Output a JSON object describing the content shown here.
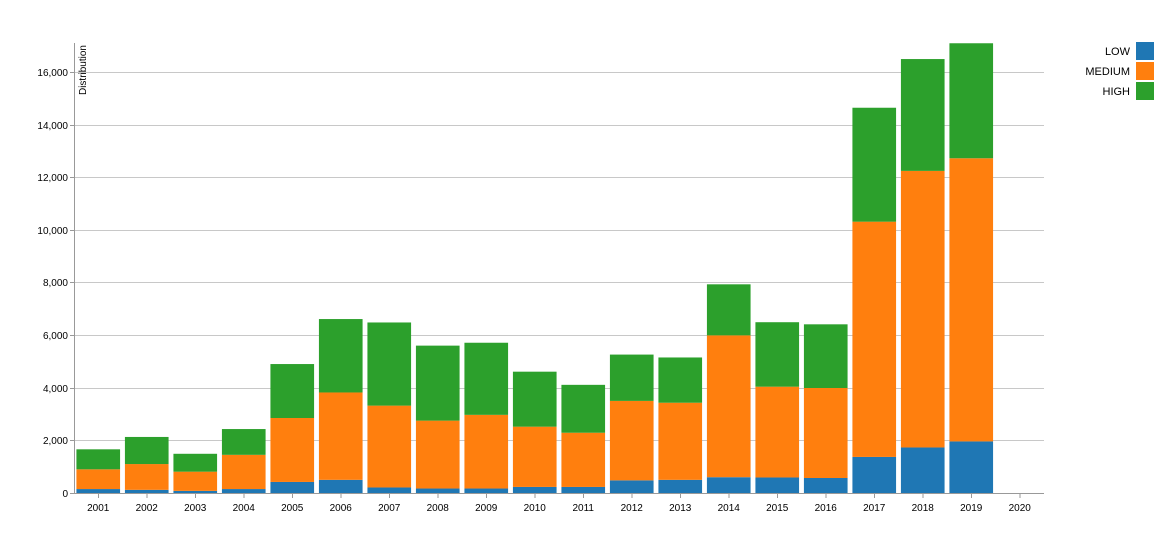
{
  "chart_data": {
    "type": "bar",
    "stacked": true,
    "title": "",
    "xlabel": "",
    "ylabel": "Distribution",
    "ylim": [
      0,
      17100
    ],
    "yticks": [
      0,
      2000,
      4000,
      6000,
      8000,
      10000,
      12000,
      14000,
      16000
    ],
    "ytick_labels": [
      "0",
      "2,000",
      "4,000",
      "6,000",
      "8,000",
      "10,000",
      "12,000",
      "14,000",
      "16,000"
    ],
    "grid": true,
    "legend_position": "top-right",
    "categories": [
      "2001",
      "2002",
      "2003",
      "2004",
      "2005",
      "2006",
      "2007",
      "2008",
      "2009",
      "2010",
      "2011",
      "2012",
      "2013",
      "2014",
      "2015",
      "2016",
      "2017",
      "2018",
      "2019",
      "2020"
    ],
    "series": [
      {
        "name": "LOW",
        "color": "#1f77b4",
        "values": [
          150,
          120,
          80,
          150,
          420,
          500,
          210,
          170,
          170,
          230,
          230,
          480,
          500,
          600,
          590,
          570,
          1370,
          1730,
          1960,
          0
        ]
      },
      {
        "name": "MEDIUM",
        "color": "#ff7f0e",
        "values": [
          750,
          980,
          730,
          1300,
          2430,
          3320,
          3110,
          2580,
          2800,
          2290,
          2060,
          3020,
          2930,
          5390,
          3450,
          3420,
          8940,
          10510,
          10760,
          0
        ]
      },
      {
        "name": "HIGH",
        "color": "#2ca02c",
        "values": [
          760,
          1030,
          680,
          980,
          2050,
          2790,
          3160,
          2850,
          2740,
          2090,
          1820,
          1760,
          1720,
          1940,
          2450,
          2420,
          4330,
          4250,
          4370,
          0
        ]
      }
    ]
  }
}
